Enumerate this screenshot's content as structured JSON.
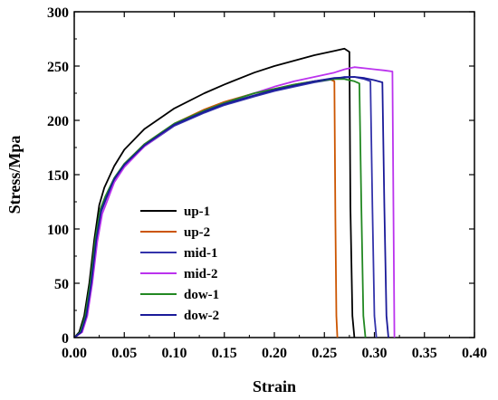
{
  "chart_data": {
    "type": "line",
    "xlabel": "Strain",
    "ylabel": "Stress/Mpa",
    "xlim": [
      0,
      0.4
    ],
    "ylim": [
      0,
      300
    ],
    "xticks": [
      0.0,
      0.05,
      0.1,
      0.15,
      0.2,
      0.25,
      0.3,
      0.35,
      0.4
    ],
    "xtick_labels": [
      "0.00",
      "0.05",
      "0.10",
      "0.15",
      "0.20",
      "0.25",
      "0.30",
      "0.35",
      "0.40"
    ],
    "yticks": [
      0,
      50,
      100,
      150,
      200,
      250,
      300
    ],
    "ytick_labels": [
      "0",
      "50",
      "100",
      "150",
      "200",
      "250",
      "300"
    ],
    "legend_position": "center",
    "grid": false,
    "series": [
      {
        "name": "up-1",
        "color": "#000000",
        "x": [
          0,
          0.005,
          0.01,
          0.015,
          0.02,
          0.025,
          0.03,
          0.04,
          0.05,
          0.07,
          0.1,
          0.13,
          0.15,
          0.18,
          0.2,
          0.22,
          0.24,
          0.26,
          0.27,
          0.275,
          0.276,
          0.278,
          0.28
        ],
        "y": [
          0,
          5,
          20,
          50,
          90,
          122,
          138,
          158,
          173,
          192,
          211,
          225,
          233,
          244,
          250,
          255,
          260,
          264,
          266,
          263,
          120,
          20,
          0
        ]
      },
      {
        "name": "up-2",
        "color": "#cc5500",
        "x": [
          0,
          0.007,
          0.012,
          0.017,
          0.022,
          0.027,
          0.032,
          0.04,
          0.05,
          0.07,
          0.1,
          0.13,
          0.15,
          0.18,
          0.2,
          0.22,
          0.24,
          0.255,
          0.26,
          0.261,
          0.262,
          0.263
        ],
        "y": [
          0,
          5,
          20,
          50,
          90,
          118,
          130,
          146,
          160,
          178,
          197,
          210,
          217,
          225,
          229,
          233,
          236,
          238,
          236,
          110,
          20,
          0
        ]
      },
      {
        "name": "mid-1",
        "color": "#3333aa",
        "x": [
          0,
          0.007,
          0.012,
          0.017,
          0.022,
          0.027,
          0.032,
          0.04,
          0.05,
          0.07,
          0.1,
          0.13,
          0.15,
          0.18,
          0.2,
          0.22,
          0.24,
          0.26,
          0.27,
          0.28,
          0.29,
          0.296,
          0.298,
          0.3,
          0.302
        ],
        "y": [
          0,
          5,
          20,
          50,
          90,
          116,
          128,
          145,
          158,
          176,
          195,
          207,
          214,
          222,
          227,
          231,
          235,
          238,
          240,
          240,
          238,
          236,
          120,
          20,
          0
        ]
      },
      {
        "name": "mid-2",
        "color": "#bb33ee",
        "x": [
          0,
          0.008,
          0.013,
          0.018,
          0.023,
          0.028,
          0.033,
          0.04,
          0.05,
          0.07,
          0.1,
          0.13,
          0.15,
          0.18,
          0.2,
          0.22,
          0.24,
          0.26,
          0.27,
          0.28,
          0.29,
          0.3,
          0.31,
          0.318,
          0.319,
          0.32
        ],
        "y": [
          0,
          5,
          20,
          50,
          88,
          114,
          126,
          143,
          157,
          176,
          196,
          209,
          216,
          225,
          231,
          236,
          240,
          244,
          247,
          249,
          248,
          247,
          246,
          245,
          120,
          0
        ]
      },
      {
        "name": "dow-1",
        "color": "#228822",
        "x": [
          0,
          0.006,
          0.011,
          0.016,
          0.021,
          0.026,
          0.031,
          0.04,
          0.05,
          0.07,
          0.1,
          0.13,
          0.15,
          0.18,
          0.2,
          0.22,
          0.24,
          0.26,
          0.27,
          0.28,
          0.285,
          0.287,
          0.289,
          0.291
        ],
        "y": [
          0,
          5,
          20,
          50,
          90,
          118,
          130,
          147,
          160,
          178,
          197,
          209,
          216,
          225,
          229,
          233,
          236,
          238,
          238,
          236,
          234,
          120,
          20,
          0
        ]
      },
      {
        "name": "dow-2",
        "color": "#1a1a99",
        "x": [
          0,
          0.007,
          0.012,
          0.017,
          0.022,
          0.027,
          0.032,
          0.04,
          0.05,
          0.07,
          0.1,
          0.13,
          0.15,
          0.18,
          0.2,
          0.22,
          0.24,
          0.26,
          0.28,
          0.29,
          0.3,
          0.308,
          0.31,
          0.312,
          0.314
        ],
        "y": [
          0,
          5,
          20,
          50,
          90,
          117,
          129,
          146,
          159,
          177,
          196,
          208,
          215,
          223,
          228,
          232,
          236,
          239,
          240,
          239,
          237,
          235,
          120,
          20,
          0
        ]
      }
    ]
  }
}
